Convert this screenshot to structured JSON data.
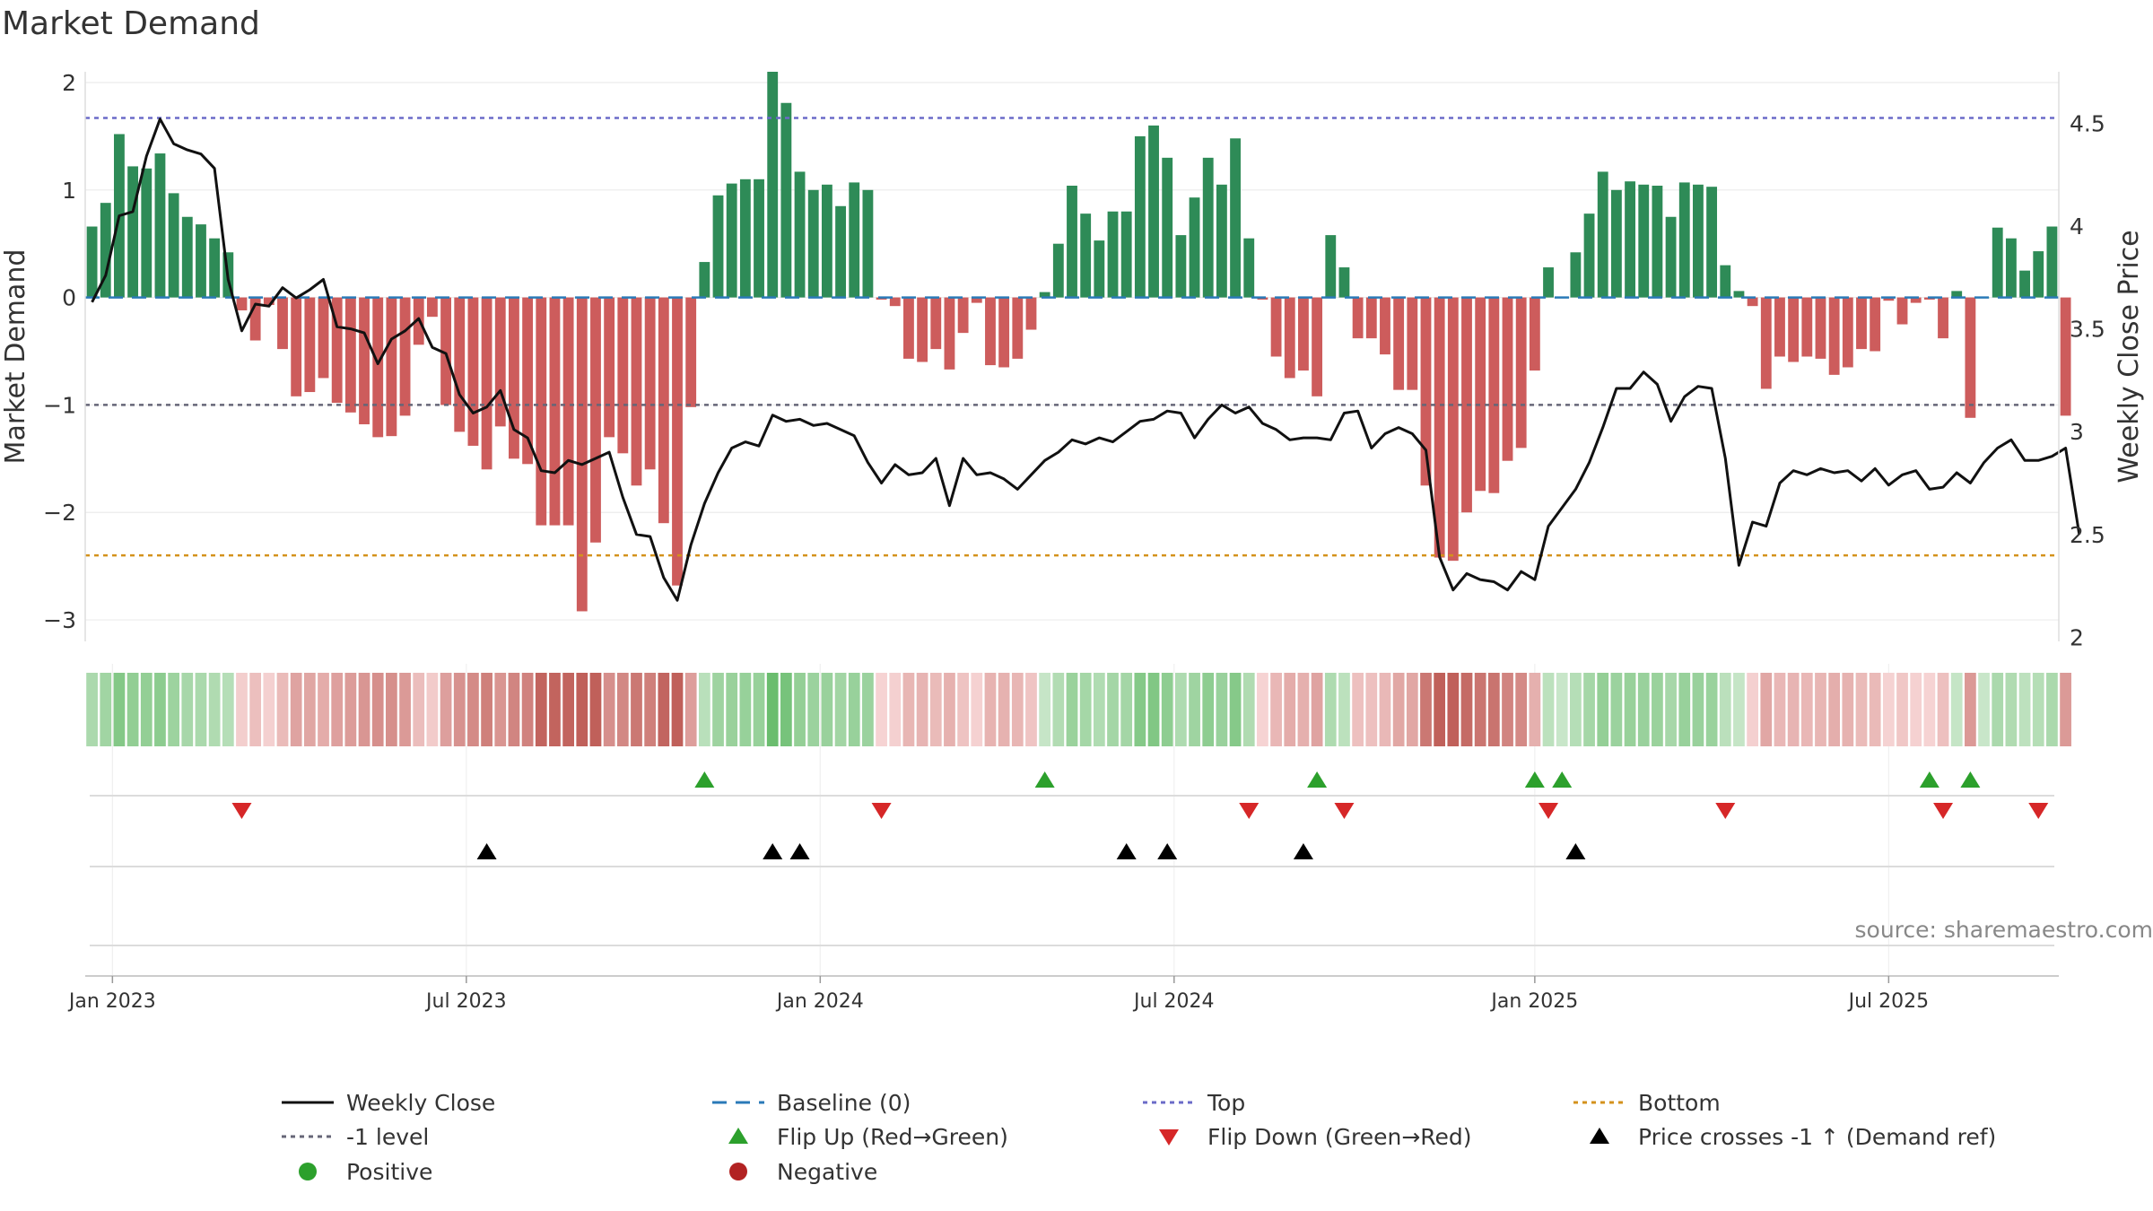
{
  "chart_data": {
    "type": "bar",
    "title": "Market Demand",
    "ylabel": "Market Demand",
    "y2label": "Weekly Close Price",
    "source": "source: sharemaestro.com",
    "ylim": [
      -3.2,
      2.1
    ],
    "y_ticks": [
      "2",
      "1",
      "0",
      "−1",
      "−2",
      "−3"
    ],
    "y2lim": [
      1.98,
      4.75
    ],
    "y2_ticks": [
      "4.5",
      "4",
      "3.5",
      "3",
      "2.5",
      "2"
    ],
    "x_ticks": [
      "Jan 2023",
      "Jul 2023",
      "Jan 2024",
      "Jul 2024",
      "Jan 2025",
      "Jul 2025"
    ],
    "top_level": 1.67,
    "bottom_level": -2.4,
    "minus1_level": -1,
    "weeks": 145,
    "x_tick_week_index": [
      1.5,
      27.5,
      53.5,
      79.5,
      106,
      132
    ],
    "demand_values": [
      0.66,
      0.88,
      1.52,
      1.22,
      1.2,
      1.34,
      0.97,
      0.75,
      0.68,
      0.55,
      0.42,
      -0.12,
      -0.4,
      -0.07,
      -0.48,
      -0.92,
      -0.88,
      -0.75,
      -0.98,
      -1.07,
      -1.18,
      -1.3,
      -1.29,
      -1.1,
      -0.44,
      -0.18,
      -1.0,
      -1.25,
      -1.38,
      -1.6,
      -1.2,
      -1.5,
      -1.55,
      -2.12,
      -2.12,
      -2.12,
      -2.92,
      -2.28,
      -1.3,
      -1.45,
      -1.75,
      -1.6,
      -2.1,
      -2.68,
      -1.02,
      0.33,
      0.95,
      1.06,
      1.1,
      1.1,
      2.1,
      1.81,
      1.17,
      1.0,
      1.05,
      0.85,
      1.07,
      1.0,
      -0.02,
      -0.08,
      -0.57,
      -0.6,
      -0.48,
      -0.67,
      -0.33,
      -0.05,
      -0.63,
      -0.65,
      -0.57,
      -0.3,
      0.05,
      0.5,
      1.04,
      0.78,
      0.53,
      0.8,
      0.8,
      1.5,
      1.6,
      1.3,
      0.58,
      0.93,
      1.3,
      1.05,
      1.48,
      0.55,
      -0.02,
      -0.55,
      -0.75,
      -0.68,
      -0.92,
      0.58,
      0.28,
      -0.38,
      -0.38,
      -0.53,
      -0.86,
      -0.86,
      -1.75,
      -2.42,
      -2.45,
      -2.0,
      -1.8,
      -1.82,
      -1.52,
      -1.4,
      -0.68,
      0.28,
      0.0,
      0.42,
      0.78,
      1.17,
      1.0,
      1.08,
      1.05,
      1.04,
      0.75,
      1.07,
      1.05,
      1.03,
      0.3,
      0.06,
      -0.08,
      -0.85,
      -0.55,
      -0.6,
      -0.55,
      -0.57,
      -0.72,
      -0.65,
      -0.48,
      -0.5,
      -0.03,
      -0.25,
      -0.05,
      -0.02,
      -0.38,
      0.06,
      -1.12,
      0.0,
      0.65,
      0.55,
      0.25,
      0.43,
      0.66,
      -1.1
    ],
    "close_values": [
      3.63,
      3.76,
      4.05,
      4.07,
      4.34,
      4.52,
      4.4,
      4.37,
      4.35,
      4.28,
      3.74,
      3.49,
      3.62,
      3.61,
      3.7,
      3.65,
      3.69,
      3.74,
      3.51,
      3.5,
      3.48,
      3.33,
      3.45,
      3.49,
      3.55,
      3.41,
      3.38,
      3.18,
      3.09,
      3.12,
      3.2,
      3.01,
      2.97,
      2.81,
      2.8,
      2.86,
      2.84,
      2.87,
      2.9,
      2.68,
      2.5,
      2.49,
      2.29,
      2.18,
      2.45,
      2.65,
      2.8,
      2.92,
      2.95,
      2.93,
      3.08,
      3.05,
      3.06,
      3.03,
      3.04,
      3.01,
      2.98,
      2.85,
      2.75,
      2.84,
      2.79,
      2.8,
      2.87,
      2.64,
      2.87,
      2.79,
      2.8,
      2.77,
      2.72,
      2.79,
      2.86,
      2.9,
      2.96,
      2.94,
      2.97,
      2.95,
      3.0,
      3.05,
      3.06,
      3.1,
      3.09,
      2.97,
      3.06,
      3.13,
      3.09,
      3.12,
      3.04,
      3.01,
      2.96,
      2.97,
      2.97,
      2.96,
      3.09,
      3.1,
      2.92,
      2.99,
      3.02,
      2.99,
      2.91,
      2.39,
      2.23,
      2.31,
      2.28,
      2.27,
      2.23,
      2.32,
      2.28,
      2.54,
      2.63,
      2.72,
      2.85,
      3.02,
      3.21,
      3.21,
      3.29,
      3.23,
      3.05,
      3.17,
      3.22,
      3.21,
      2.87,
      2.35,
      2.56,
      2.54,
      2.75,
      2.81,
      2.79,
      2.82,
      2.8,
      2.81,
      2.76,
      2.82,
      2.74,
      2.79,
      2.81,
      2.72,
      2.73,
      2.8,
      2.75,
      2.85,
      2.92,
      2.96,
      2.86,
      2.86,
      2.88,
      2.92,
      2.5
    ],
    "flip_up_weeks": [
      45,
      70,
      90,
      106,
      108,
      135,
      138
    ],
    "flip_down_weeks": [
      11,
      58,
      85,
      92,
      107,
      120,
      136,
      143
    ],
    "cross_weeks": [
      29,
      50,
      52,
      76,
      79,
      89,
      109
    ],
    "colors": {
      "positive": "#2e8b57",
      "negative": "#cd5c5c",
      "close_line": "#111111",
      "top_line": "#6b6bc8",
      "bottom_line": "#d4921c",
      "baseline": "#2a7ab8",
      "minus1_line": "#666677",
      "flip_up": "#2ca02c",
      "flip_down": "#d62728",
      "cross": "#000000",
      "heat_pos_light": "#c8e6c9",
      "heat_pos_dark": "#66bb6a",
      "heat_neg_light": "#f6d4d4",
      "heat_neg_dark": "#c0605a",
      "dot_positive": "#2ca02c",
      "dot_negative": "#b22222"
    },
    "legend": [
      {
        "key": "close",
        "label": "Weekly Close",
        "icon": "solid-line"
      },
      {
        "key": "baseline",
        "label": "Baseline (0)",
        "icon": "dashed-line"
      },
      {
        "key": "top",
        "label": "Top",
        "icon": "dotted-line"
      },
      {
        "key": "bottom",
        "label": "Bottom",
        "icon": "dotted-line"
      },
      {
        "key": "minus1",
        "label": "-1 level",
        "icon": "dotted-line"
      },
      {
        "key": "flip_up",
        "label": "Flip Up (Red→Green)",
        "icon": "triangle-up"
      },
      {
        "key": "flip_down",
        "label": "Flip Down (Green→Red)",
        "icon": "triangle-down"
      },
      {
        "key": "cross",
        "label": "Price crosses -1 ↑ (Demand ref)",
        "icon": "triangle-up"
      },
      {
        "key": "positive",
        "label": "Positive",
        "icon": "dot"
      },
      {
        "key": "negative",
        "label": "Negative",
        "icon": "dot"
      }
    ]
  }
}
